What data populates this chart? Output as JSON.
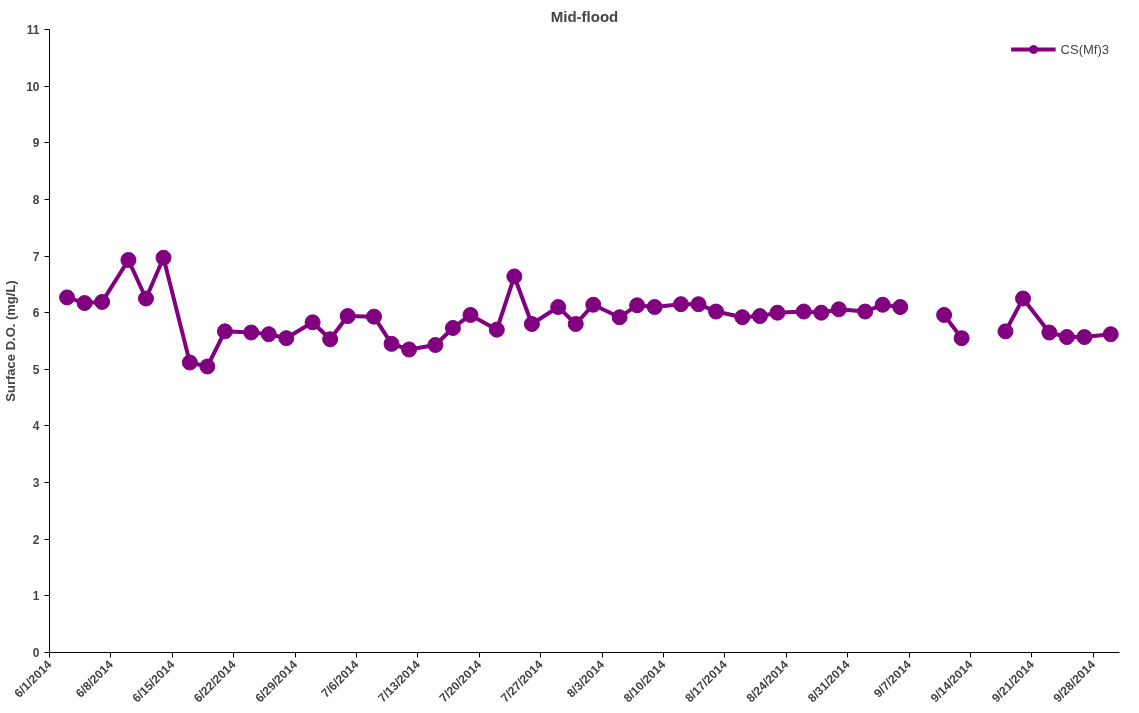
{
  "chart_data": {
    "type": "line",
    "title": "Mid-flood",
    "ylabel": "Surface D.O. (mg/L)",
    "x": [
      "2014-06-03",
      "2014-06-05",
      "2014-06-07",
      "2014-06-10",
      "2014-06-12",
      "2014-06-14",
      "2014-06-17",
      "2014-06-19",
      "2014-06-21",
      "2014-06-24",
      "2014-06-26",
      "2014-06-28",
      "2014-07-01",
      "2014-07-03",
      "2014-07-05",
      "2014-07-08",
      "2014-07-10",
      "2014-07-12",
      "2014-07-15",
      "2014-07-17",
      "2014-07-19",
      "2014-07-22",
      "2014-07-24",
      "2014-07-26",
      "2014-07-29",
      "2014-07-31",
      "2014-08-02",
      "2014-08-05",
      "2014-08-07",
      "2014-08-09",
      "2014-08-12",
      "2014-08-14",
      "2014-08-16",
      "2014-08-19",
      "2014-08-21",
      "2014-08-23",
      "2014-08-26",
      "2014-08-28",
      "2014-08-30",
      "2014-09-02",
      "2014-09-04",
      "2014-09-06",
      "2014-09-09",
      "2014-09-11",
      "2014-09-13",
      "2014-09-16",
      "2014-09-18",
      "2014-09-20",
      "2014-09-23",
      "2014-09-25",
      "2014-09-27",
      "2014-09-30"
    ],
    "series": [
      {
        "name": "CS(Mf)3",
        "color": "#800080",
        "values": [
          6.27,
          6.17,
          6.19,
          6.93,
          6.25,
          6.97,
          5.12,
          5.05,
          5.67,
          5.65,
          5.62,
          5.55,
          5.83,
          5.53,
          5.94,
          5.93,
          5.45,
          5.35,
          5.43,
          5.73,
          5.96,
          5.7,
          6.64,
          5.8,
          6.1,
          5.8,
          6.14,
          5.92,
          6.13,
          6.1,
          6.15,
          6.15,
          6.02,
          5.92,
          5.94,
          6.0,
          6.02,
          6.0,
          6.06,
          6.02,
          6.14,
          6.1,
          null,
          5.96,
          5.55,
          null,
          5.67,
          6.25,
          5.65,
          5.57,
          5.57,
          5.62
        ]
      }
    ],
    "xlim": [
      "2014-06-01",
      "2014-10-01"
    ],
    "xticks": [
      {
        "value": "2014-06-01",
        "label": "6/1/2014"
      },
      {
        "value": "2014-06-08",
        "label": "6/8/2014"
      },
      {
        "value": "2014-06-15",
        "label": "6/15/2014"
      },
      {
        "value": "2014-06-22",
        "label": "6/22/2014"
      },
      {
        "value": "2014-06-29",
        "label": "6/29/2014"
      },
      {
        "value": "2014-07-06",
        "label": "7/6/2014"
      },
      {
        "value": "2014-07-13",
        "label": "7/13/2014"
      },
      {
        "value": "2014-07-20",
        "label": "7/20/2014"
      },
      {
        "value": "2014-07-27",
        "label": "7/27/2014"
      },
      {
        "value": "2014-08-03",
        "label": "8/3/2014"
      },
      {
        "value": "2014-08-10",
        "label": "8/10/2014"
      },
      {
        "value": "2014-08-17",
        "label": "8/17/2014"
      },
      {
        "value": "2014-08-24",
        "label": "8/24/2014"
      },
      {
        "value": "2014-08-31",
        "label": "8/31/2014"
      },
      {
        "value": "2014-09-07",
        "label": "9/7/2014"
      },
      {
        "value": "2014-09-14",
        "label": "9/14/2014"
      },
      {
        "value": "2014-09-21",
        "label": "9/21/2014"
      },
      {
        "value": "2014-09-28",
        "label": "9/28/2014"
      }
    ],
    "ylim": [
      0,
      11
    ],
    "yticks": [
      0,
      1,
      2,
      3,
      4,
      5,
      6,
      7,
      8,
      9,
      10,
      11
    ],
    "grid": false,
    "legend": "top right",
    "marker": "circle",
    "line_style": "solid"
  }
}
